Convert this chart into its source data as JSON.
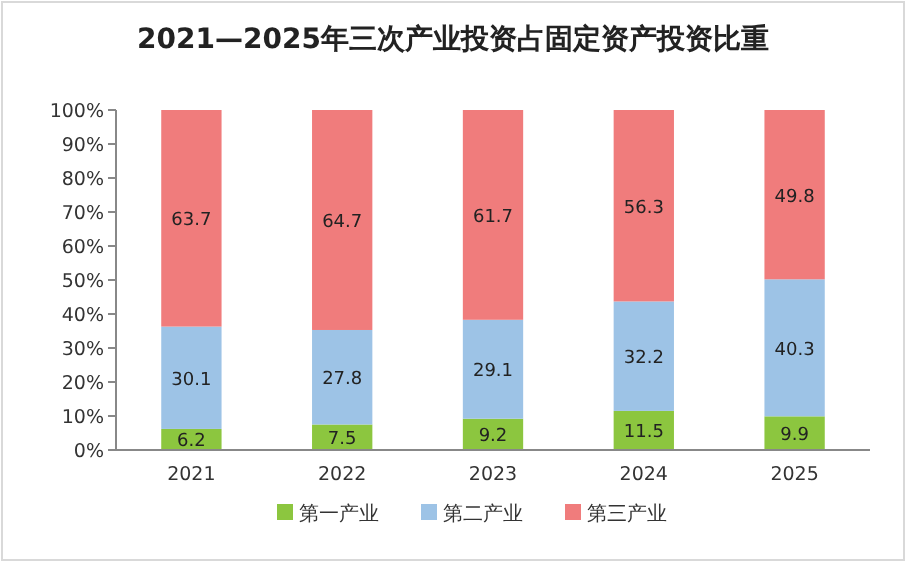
{
  "chart_data": {
    "type": "bar",
    "title": "2021—2025年三次产业投资占固定资产投资比重",
    "categories": [
      "2021",
      "2022",
      "2023",
      "2024",
      "2025"
    ],
    "stacked": true,
    "data_labels": true,
    "legend": "bottom",
    "grid": false,
    "ylim": [
      0,
      100
    ],
    "yticks": [
      {
        "value": 0,
        "label": "0%"
      },
      {
        "value": 10,
        "label": "10%"
      },
      {
        "value": 20,
        "label": "20%"
      },
      {
        "value": 30,
        "label": "30%"
      },
      {
        "value": 40,
        "label": "40%"
      },
      {
        "value": 50,
        "label": "50%"
      },
      {
        "value": 60,
        "label": "60%"
      },
      {
        "value": 70,
        "label": "70%"
      },
      {
        "value": 80,
        "label": "80%"
      },
      {
        "value": 90,
        "label": "90%"
      },
      {
        "value": 100,
        "label": "100%"
      }
    ],
    "series": [
      {
        "name": "第一产业",
        "color": "#8cc63f",
        "values": [
          6.2,
          7.5,
          9.2,
          11.5,
          9.9
        ]
      },
      {
        "name": "第二产业",
        "color": "#9dc3e6",
        "values": [
          30.1,
          27.8,
          29.1,
          32.2,
          40.3
        ]
      },
      {
        "name": "第三产业",
        "color": "#f07c7c",
        "values": [
          63.7,
          64.7,
          61.7,
          56.3,
          49.8
        ]
      }
    ]
  }
}
